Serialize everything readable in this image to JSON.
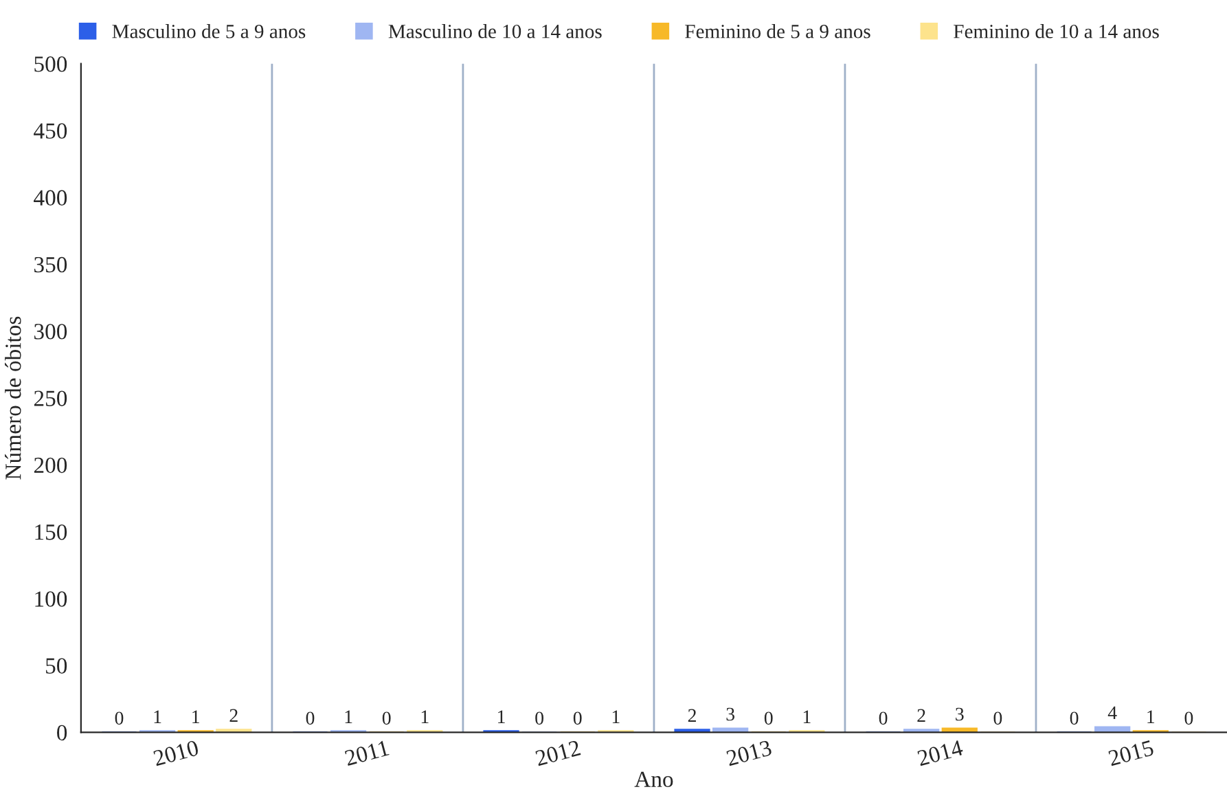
{
  "chart_data": {
    "type": "bar",
    "xlabel": "Ano",
    "ylabel": "Número de óbitos",
    "categories": [
      "2010",
      "2011",
      "2012",
      "2013",
      "2014",
      "2015"
    ],
    "series": [
      {
        "name": "Masculino de 5 a 9 anos",
        "color": "#2c5fe8",
        "values": [
          0,
          0,
          1,
          2,
          0,
          0
        ]
      },
      {
        "name": "Masculino de 10 a 14 anos",
        "color": "#9fb6f2",
        "values": [
          1,
          1,
          0,
          3,
          2,
          4
        ]
      },
      {
        "name": "Feminino de 5 a 9 anos",
        "color": "#f7b928",
        "values": [
          1,
          0,
          0,
          0,
          3,
          1
        ]
      },
      {
        "name": "Feminino de 10 a 14 anos",
        "color": "#fde38c",
        "values": [
          2,
          1,
          1,
          1,
          0,
          0
        ]
      }
    ],
    "ylim": [
      0,
      500
    ],
    "yticks": [
      0,
      50,
      100,
      150,
      200,
      250,
      300,
      350,
      400,
      450,
      500
    ],
    "grid": "x",
    "legend": "top",
    "data_labels": true
  }
}
